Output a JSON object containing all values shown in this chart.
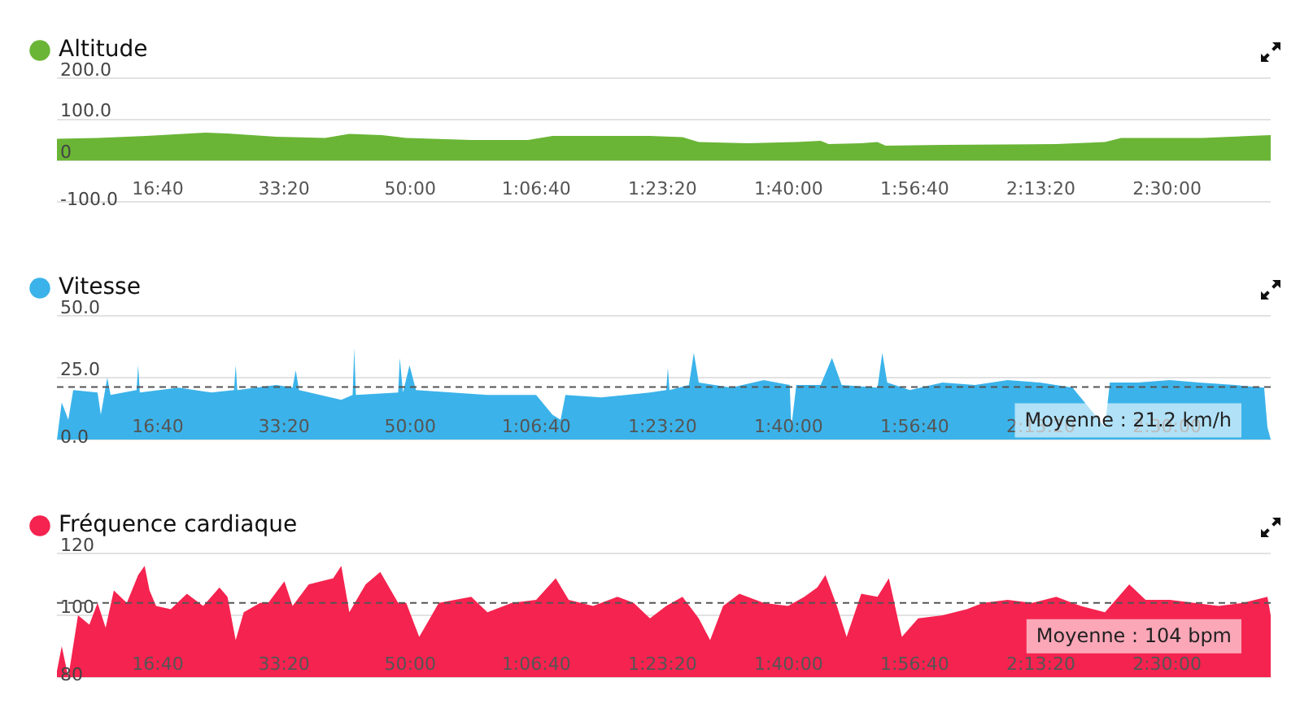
{
  "chart_data": [
    {
      "type": "area",
      "x": [
        200,
        522,
        908,
        1372,
        1552,
        1939,
        2325,
        2518,
        2776,
        2969,
        3484,
        3935,
        4128,
        4386,
        4901,
        5159,
        5288,
        5674,
        6060,
        6254,
        6318,
        6576,
        6705,
        6769,
        7220,
        8121,
        8508,
        8637,
        9281,
        9822
      ],
      "series": [
        {
          "name": "Altitude",
          "color": "#6ab536",
          "values": [
            53,
            55,
            60,
            68,
            66,
            58,
            55,
            65,
            62,
            55,
            50,
            50,
            60,
            60,
            60,
            57,
            45,
            42,
            45,
            48,
            40,
            42,
            45,
            36,
            38,
            40,
            45,
            55,
            55,
            62
          ]
        }
      ],
      "xlim": [
        200,
        9822
      ],
      "xticks": [
        {
          "value": 1000,
          "label": "16:40"
        },
        {
          "value": 2000,
          "label": "33:20"
        },
        {
          "value": 3000,
          "label": "50:00"
        },
        {
          "value": 4000,
          "label": "1:06:40"
        },
        {
          "value": 5000,
          "label": "1:23:20"
        },
        {
          "value": 6000,
          "label": "1:40:00"
        },
        {
          "value": 7000,
          "label": "1:56:40"
        },
        {
          "value": 8000,
          "label": "2:13:20"
        },
        {
          "value": 9000,
          "label": "2:30:00"
        }
      ],
      "ylim": [
        -100,
        200
      ],
      "yticks": [
        {
          "value": -100,
          "label": "-100.0"
        },
        0,
        {
          "value": 100,
          "label": "100.0"
        },
        {
          "value": 200,
          "label": "200.0"
        }
      ],
      "grid": "y",
      "legend": "top left",
      "marker": "none"
    },
    {
      "type": "area",
      "x": [
        200,
        238,
        290,
        329,
        522,
        548,
        599,
        625,
        831,
        844,
        857,
        1166,
        1424,
        1604,
        1617,
        1630,
        1939,
        2068,
        2093,
        2119,
        2454,
        2544,
        2557,
        2570,
        2905,
        2918,
        2943,
        2995,
        3046,
        3613,
        3999,
        4128,
        4193,
        4231,
        4515,
        4901,
        5030,
        5043,
        5056,
        5210,
        5249,
        5288,
        5545,
        5803,
        6009,
        6022,
        6061,
        6254,
        6344,
        6421,
        6705,
        6743,
        6782,
        6962,
        7220,
        7478,
        7736,
        7994,
        8251,
        8508,
        8547,
        8766,
        9023,
        9255,
        9538,
        9770,
        9796,
        9822
      ],
      "series": [
        {
          "name": "Vitesse",
          "color": "#3bb3ea",
          "values": [
            0,
            15,
            8,
            20,
            19,
            10,
            25,
            18,
            20,
            30,
            19,
            21,
            19,
            20,
            30,
            20,
            22,
            21,
            28,
            20,
            16,
            18,
            37,
            18,
            19,
            33,
            19,
            30,
            20,
            18,
            18,
            10,
            8,
            18,
            17,
            19,
            20,
            29,
            20,
            22,
            35,
            23,
            21,
            24,
            22,
            5,
            22,
            22,
            33,
            22,
            21,
            35,
            23,
            20,
            23,
            22,
            24,
            23,
            21,
            5,
            23,
            23,
            24,
            23,
            22,
            21,
            5,
            0
          ]
        }
      ],
      "xlim": [
        200,
        9822
      ],
      "xticks": [
        {
          "value": 1000,
          "label": "16:40"
        },
        {
          "value": 2000,
          "label": "33:20"
        },
        {
          "value": 3000,
          "label": "50:00"
        },
        {
          "value": 4000,
          "label": "1:06:40"
        },
        {
          "value": 5000,
          "label": "1:23:20"
        },
        {
          "value": 6000,
          "label": "1:40:00"
        },
        {
          "value": 7000,
          "label": "1:56:40"
        },
        {
          "value": 8000,
          "label": "2:13:20"
        },
        {
          "value": 9000,
          "label": "2:30:00"
        }
      ],
      "ylim": [
        0,
        50
      ],
      "yticks": [
        {
          "value": 0,
          "label": "0.0"
        },
        {
          "value": 25,
          "label": "25.0"
        },
        {
          "value": 50,
          "label": "50.0"
        }
      ],
      "ref_lines": [
        {
          "axis": "y",
          "value": 21.2,
          "label": "Moyenne : 21.2 km/h",
          "line_style": "dashed"
        }
      ],
      "grid": "y",
      "legend": "top left",
      "marker": "none"
    },
    {
      "type": "area",
      "x": [
        200,
        238,
        290,
        367,
        457,
        522,
        586,
        651,
        754,
        844,
        895,
        934,
        986,
        1102,
        1230,
        1359,
        1488,
        1552,
        1617,
        1681,
        1810,
        1875,
        2003,
        2068,
        2196,
        2390,
        2454,
        2518,
        2647,
        2763,
        2905,
        2969,
        3072,
        3227,
        3484,
        3613,
        3806,
        3999,
        4154,
        4257,
        4450,
        4643,
        4772,
        4901,
        5030,
        5159,
        5288,
        5378,
        5481,
        5610,
        5803,
        5996,
        6125,
        6228,
        6292,
        6383,
        6460,
        6576,
        6705,
        6795,
        6898,
        7027,
        7220,
        7413,
        7542,
        7736,
        7929,
        8122,
        8315,
        8508,
        8701,
        8830,
        9023,
        9216,
        9409,
        9602,
        9796,
        9822
      ],
      "series": [
        {
          "name": "Fréquence cardiaque",
          "color": "#f5234f",
          "values": [
            82,
            90,
            80,
            100,
            97,
            104,
            96,
            108,
            104,
            113,
            116,
            108,
            103,
            102,
            107,
            103,
            109,
            106,
            92,
            101,
            104,
            104,
            111,
            103,
            110,
            112,
            116,
            101,
            110,
            114,
            104,
            104,
            93,
            104,
            106,
            101,
            104,
            105,
            112,
            105,
            103,
            106,
            104,
            99,
            103,
            106,
            99,
            92,
            103,
            107,
            104,
            103,
            106,
            109,
            113,
            103,
            93,
            107,
            106,
            112,
            93,
            99,
            100,
            102,
            104,
            105,
            104,
            106,
            103,
            101,
            110,
            105,
            105,
            104,
            103,
            104,
            106,
            100
          ]
        }
      ],
      "xlim": [
        200,
        9822
      ],
      "xticks": [
        {
          "value": 1000,
          "label": "16:40"
        },
        {
          "value": 2000,
          "label": "33:20"
        },
        {
          "value": 3000,
          "label": "50:00"
        },
        {
          "value": 4000,
          "label": "1:06:40"
        },
        {
          "value": 5000,
          "label": "1:23:20"
        },
        {
          "value": 6000,
          "label": "1:40:00"
        },
        {
          "value": 7000,
          "label": "1:56:40"
        },
        {
          "value": 8000,
          "label": "2:13:20"
        },
        {
          "value": 9000,
          "label": "2:30:00"
        }
      ],
      "ylim": [
        80,
        120
      ],
      "yticks": [
        80,
        100,
        120
      ],
      "ref_lines": [
        {
          "axis": "y",
          "value": 104,
          "label": "Moyenne : 104 bpm",
          "line_style": "dashed"
        }
      ],
      "grid": "y",
      "legend": "top left",
      "marker": "none"
    }
  ]
}
